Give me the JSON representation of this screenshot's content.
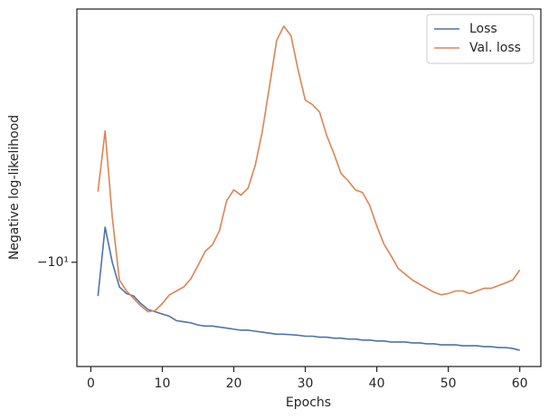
{
  "chart_data": {
    "type": "line",
    "x_label": "Epochs",
    "y_label": "Negative log-likelihood",
    "yscale": "symlog",
    "x": [
      1,
      2,
      3,
      4,
      5,
      6,
      7,
      8,
      9,
      10,
      11,
      12,
      13,
      14,
      15,
      16,
      17,
      18,
      19,
      20,
      21,
      22,
      23,
      24,
      25,
      26,
      27,
      28,
      29,
      30,
      31,
      32,
      33,
      34,
      35,
      36,
      37,
      38,
      39,
      40,
      41,
      42,
      43,
      44,
      45,
      46,
      47,
      48,
      49,
      50,
      51,
      52,
      53,
      54,
      55,
      56,
      57,
      58,
      59,
      60
    ],
    "series": [
      {
        "name": "Loss",
        "color": "#4c72b0",
        "values": [
          -12.4,
          -8.0,
          -10.0,
          -11.7,
          -12.2,
          -12.4,
          -13.0,
          -13.5,
          -13.7,
          -13.9,
          -14.1,
          -14.5,
          -14.6,
          -14.7,
          -14.9,
          -15.0,
          -15.0,
          -15.1,
          -15.2,
          -15.3,
          -15.4,
          -15.4,
          -15.5,
          -15.6,
          -15.7,
          -15.8,
          -15.8,
          -15.85,
          -15.9,
          -16.0,
          -16.0,
          -16.1,
          -16.1,
          -16.2,
          -16.2,
          -16.3,
          -16.3,
          -16.4,
          -16.4,
          -16.5,
          -16.5,
          -16.6,
          -16.6,
          -16.6,
          -16.7,
          -16.7,
          -16.8,
          -16.8,
          -16.9,
          -16.9,
          -16.9,
          -17.0,
          -17.0,
          -17.0,
          -17.1,
          -17.1,
          -17.2,
          -17.2,
          -17.3,
          -17.5
        ]
      },
      {
        "name": "Val. loss",
        "color": "#dd8452",
        "values": [
          -6.38,
          -4.34,
          -7.5,
          -11.2,
          -12.0,
          -12.6,
          -13.2,
          -13.7,
          -13.6,
          -13.0,
          -12.3,
          -12.0,
          -11.7,
          -11.1,
          -10.2,
          -9.33,
          -8.96,
          -8.18,
          -6.76,
          -6.31,
          -6.53,
          -6.24,
          -5.4,
          -4.34,
          -3.26,
          -2.44,
          -2.23,
          -2.37,
          -2.95,
          -3.57,
          -3.67,
          -3.85,
          -4.47,
          -5.01,
          -5.69,
          -5.96,
          -6.31,
          -6.42,
          -6.96,
          -7.94,
          -8.91,
          -9.6,
          -10.4,
          -10.8,
          -11.2,
          -11.5,
          -11.8,
          -12.1,
          -12.3,
          -12.2,
          -12.0,
          -12.0,
          -12.2,
          -12.0,
          -11.8,
          -11.8,
          -11.6,
          -11.4,
          -11.2,
          -10.5
        ]
      }
    ],
    "xlim": [
      -1.95,
      62.95
    ],
    "xticks": [
      0,
      10,
      20,
      30,
      40,
      50,
      60
    ],
    "ylim": [
      -2.0,
      -19.4
    ],
    "yticks": [
      {
        "value": -10,
        "label": "−10¹"
      }
    ],
    "legend": "upper right"
  }
}
